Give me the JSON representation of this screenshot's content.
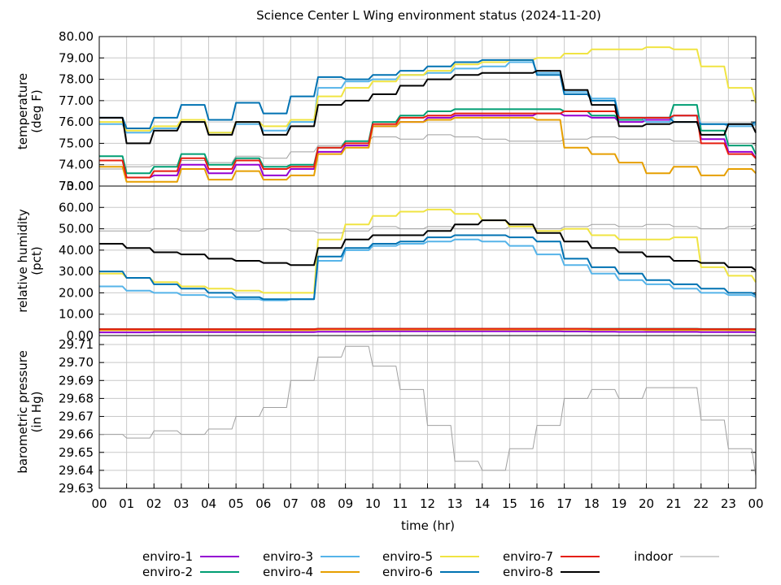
{
  "chart_data": {
    "type": "line",
    "title": "Science Center L Wing environment status (2024-11-20)",
    "xlabel": "time (hr)",
    "xlim": [
      0,
      24
    ],
    "x_tick_labels": [
      "00",
      "01",
      "02",
      "03",
      "04",
      "05",
      "06",
      "07",
      "08",
      "09",
      "10",
      "11",
      "12",
      "13",
      "14",
      "15",
      "16",
      "17",
      "18",
      "19",
      "20",
      "21",
      "22",
      "23",
      "00"
    ],
    "series_styles": [
      {
        "name": "enviro-1",
        "color": "#9400d3"
      },
      {
        "name": "enviro-2",
        "color": "#009e73"
      },
      {
        "name": "enviro-3",
        "color": "#56b4e9"
      },
      {
        "name": "enviro-4",
        "color": "#e69f00"
      },
      {
        "name": "enviro-5",
        "color": "#f0e442"
      },
      {
        "name": "enviro-6",
        "color": "#0072b2"
      },
      {
        "name": "enviro-7",
        "color": "#e51e10"
      },
      {
        "name": "enviro-8",
        "color": "#000000"
      },
      {
        "name": "indoor",
        "color": "#a0a0a0"
      }
    ],
    "panels": [
      {
        "id": "temperature",
        "ylabel_lines": [
          "temperature",
          "(deg F)"
        ],
        "ylim": [
          73.0,
          80.0
        ],
        "y_ticks": [
          73.0,
          74.0,
          75.0,
          76.0,
          77.0,
          78.0,
          79.0,
          80.0
        ],
        "y_tick_labels": [
          "73.00",
          "74.00",
          "75.00",
          "76.00",
          "77.00",
          "78.00",
          "79.00",
          "80.00"
        ],
        "x": [
          0,
          1,
          2,
          3,
          4,
          5,
          6,
          7,
          8,
          9,
          10,
          11,
          12,
          13,
          14,
          15,
          16,
          17,
          18,
          19,
          20,
          21,
          22,
          23,
          24
        ],
        "series": [
          {
            "name": "enviro-1",
            "values": [
              74.2,
              73.4,
              73.5,
              74.0,
              73.6,
              74.0,
              73.5,
              73.8,
              74.6,
              74.9,
              75.8,
              76.0,
              76.2,
              76.3,
              76.3,
              76.3,
              76.4,
              76.3,
              76.2,
              76.0,
              76.1,
              76.3,
              75.2,
              74.6,
              74.3
            ]
          },
          {
            "name": "enviro-2",
            "values": [
              74.4,
              73.6,
              73.9,
              74.5,
              74.0,
              74.3,
              73.9,
              74.0,
              74.8,
              75.1,
              76.0,
              76.3,
              76.5,
              76.6,
              76.6,
              76.6,
              76.6,
              76.5,
              76.3,
              76.1,
              76.2,
              76.8,
              75.6,
              74.9,
              74.5
            ]
          },
          {
            "name": "enviro-3",
            "values": [
              75.9,
              75.5,
              75.7,
              76.0,
              75.5,
              75.9,
              75.6,
              76.0,
              77.6,
              77.9,
              78.0,
              78.2,
              78.3,
              78.5,
              78.6,
              78.8,
              78.3,
              77.4,
              77.1,
              76.2,
              76.0,
              76.3,
              75.9,
              75.8,
              75.9
            ]
          },
          {
            "name": "enviro-4",
            "values": [
              73.9,
              73.2,
              73.2,
              73.8,
              73.3,
              73.7,
              73.3,
              73.5,
              74.5,
              74.8,
              75.8,
              76.0,
              76.1,
              76.2,
              76.2,
              76.2,
              76.1,
              74.8,
              74.5,
              74.1,
              73.6,
              73.9,
              73.5,
              73.8,
              73.6
            ]
          },
          {
            "name": "enviro-5",
            "values": [
              76.0,
              75.6,
              75.8,
              76.1,
              75.5,
              76.0,
              75.8,
              76.1,
              77.2,
              77.6,
              77.9,
              78.2,
              78.4,
              78.7,
              78.8,
              78.9,
              79.0,
              79.2,
              79.4,
              79.4,
              79.5,
              79.4,
              78.6,
              77.6,
              76.9
            ]
          },
          {
            "name": "enviro-6",
            "values": [
              76.2,
              75.7,
              76.2,
              76.8,
              76.1,
              76.9,
              76.4,
              77.2,
              78.1,
              78.0,
              78.2,
              78.4,
              78.6,
              78.8,
              78.9,
              78.9,
              78.2,
              77.3,
              77.0,
              76.2,
              76.2,
              76.0,
              75.9,
              75.9,
              76.0
            ]
          },
          {
            "name": "enviro-7",
            "values": [
              74.2,
              73.4,
              73.7,
              74.3,
              73.8,
              74.2,
              73.8,
              73.9,
              74.8,
              75.0,
              75.9,
              76.2,
              76.3,
              76.4,
              76.4,
              76.4,
              76.4,
              76.5,
              76.5,
              76.2,
              76.2,
              76.3,
              75.0,
              74.5,
              74.3
            ]
          },
          {
            "name": "enviro-8",
            "values": [
              76.2,
              75.0,
              75.6,
              76.0,
              75.4,
              76.0,
              75.4,
              75.8,
              76.8,
              77.0,
              77.3,
              77.7,
              78.0,
              78.2,
              78.3,
              78.3,
              78.4,
              77.5,
              76.8,
              75.8,
              75.9,
              76.0,
              75.4,
              75.9,
              75.5
            ]
          },
          {
            "name": "indoor",
            "values": [
              73.8,
              73.9,
              74.0,
              74.2,
              74.1,
              74.4,
              74.3,
              74.6,
              74.9,
              75.1,
              75.3,
              75.2,
              75.4,
              75.3,
              75.2,
              75.1,
              75.1,
              75.2,
              75.3,
              75.2,
              75.2,
              75.1,
              75.0,
              75.0,
              74.9
            ]
          }
        ]
      },
      {
        "id": "humidity",
        "ylabel_lines": [
          "relative humidity",
          "(pct)"
        ],
        "ylim": [
          0.0,
          70.0
        ],
        "y_ticks": [
          0,
          10,
          20,
          30,
          40,
          50,
          60,
          70
        ],
        "y_tick_labels": [
          "0.00",
          "10.00",
          "20.00",
          "30.00",
          "40.00",
          "50.00",
          "60.00",
          "70.00"
        ],
        "x": [
          0,
          1,
          2,
          3,
          4,
          5,
          6,
          7,
          8,
          9,
          10,
          11,
          12,
          13,
          14,
          15,
          16,
          17,
          18,
          19,
          20,
          21,
          22,
          23,
          24
        ],
        "series": [
          {
            "name": "enviro-1",
            "values": [
              1.5,
              1.5,
              1.6,
              1.6,
              1.6,
              1.6,
              1.6,
              1.6,
              1.8,
              1.8,
              2.0,
              2.0,
              2.0,
              2.0,
              2.0,
              2.0,
              2.0,
              1.9,
              1.8,
              1.7,
              1.7,
              1.7,
              1.6,
              1.6,
              1.5
            ]
          },
          {
            "name": "enviro-2",
            "values": [
              3.0,
              3.0,
              3.0,
              3.0,
              3.0,
              3.0,
              3.0,
              3.0,
              3.2,
              3.2,
              3.2,
              3.2,
              3.2,
              3.2,
              3.2,
              3.2,
              3.2,
              3.2,
              3.2,
              3.2,
              3.2,
              3.2,
              3.1,
              3.1,
              3.0
            ]
          },
          {
            "name": "enviro-3",
            "values": [
              23,
              21,
              20,
              19,
              18,
              17,
              16.5,
              17,
              35,
              40,
              42,
              43,
              44,
              45,
              44,
              42,
              38,
              33,
              29,
              26,
              24,
              22,
              20,
              19,
              18
            ]
          },
          {
            "name": "enviro-4",
            "values": [
              2.5,
              2.5,
              2.5,
              2.5,
              2.5,
              2.5,
              2.5,
              2.5,
              2.8,
              2.8,
              2.8,
              2.8,
              2.8,
              2.8,
              2.8,
              2.8,
              2.8,
              2.8,
              2.7,
              2.7,
              2.6,
              2.6,
              2.6,
              2.5,
              2.5
            ]
          },
          {
            "name": "enviro-5",
            "values": [
              29,
              27,
              25,
              23,
              22,
              21,
              20,
              20,
              45,
              52,
              56,
              58,
              59,
              57,
              54,
              51,
              49,
              50,
              47,
              45,
              45,
              46,
              32,
              28,
              25
            ]
          },
          {
            "name": "enviro-6",
            "values": [
              30,
              27,
              24,
              22,
              20,
              18,
              17,
              17,
              37,
              41,
              43,
              44,
              46,
              47,
              47,
              46,
              44,
              36,
              32,
              29,
              26,
              24,
              22,
              20,
              19
            ]
          },
          {
            "name": "enviro-7",
            "values": [
              3.0,
              3.0,
              3.0,
              3.0,
              3.0,
              3.0,
              3.0,
              3.0,
              3.2,
              3.2,
              3.2,
              3.2,
              3.2,
              3.2,
              3.2,
              3.2,
              3.2,
              3.2,
              3.1,
              3.1,
              3.1,
              3.1,
              3.0,
              3.0,
              3.0
            ]
          },
          {
            "name": "enviro-8",
            "values": [
              43,
              41,
              39,
              38,
              36,
              35,
              34,
              33,
              41,
              45,
              47,
              47,
              49,
              52,
              54,
              52,
              48,
              44,
              41,
              39,
              37,
              35,
              34,
              32,
              30.5
            ]
          },
          {
            "name": "indoor",
            "values": [
              49,
              49,
              50,
              49,
              50,
              49,
              50,
              49,
              48,
              49,
              51,
              50,
              51,
              50,
              50,
              51,
              50,
              51,
              52,
              51,
              52,
              51,
              50,
              51,
              52
            ]
          }
        ]
      },
      {
        "id": "pressure",
        "ylabel_lines": [
          "barometric pressure",
          "(in Hg)"
        ],
        "ylim": [
          29.63,
          29.715
        ],
        "y_ticks": [
          29.63,
          29.64,
          29.65,
          29.66,
          29.67,
          29.68,
          29.69,
          29.7,
          29.71
        ],
        "y_tick_labels": [
          "29.63",
          "29.64",
          "29.65",
          "29.66",
          "29.67",
          "29.68",
          "29.69",
          "29.70",
          "29.71"
        ],
        "x": [
          0,
          1,
          2,
          3,
          4,
          5,
          6,
          7,
          8,
          9,
          10,
          11,
          12,
          13,
          14,
          15,
          16,
          17,
          18,
          19,
          20,
          21,
          22,
          23,
          24
        ],
        "series": [
          {
            "name": "indoor",
            "values": [
              29.66,
              29.658,
              29.662,
              29.66,
              29.663,
              29.67,
              29.675,
              29.69,
              29.703,
              29.709,
              29.698,
              29.685,
              29.665,
              29.645,
              29.64,
              29.652,
              29.665,
              29.68,
              29.685,
              29.68,
              29.686,
              29.686,
              29.668,
              29.652,
              29.637
            ]
          }
        ]
      }
    ],
    "legend": {
      "placement": "bottom",
      "entries": [
        "enviro-1",
        "enviro-2",
        "enviro-3",
        "enviro-4",
        "enviro-5",
        "enviro-6",
        "enviro-7",
        "enviro-8",
        "indoor"
      ]
    }
  }
}
